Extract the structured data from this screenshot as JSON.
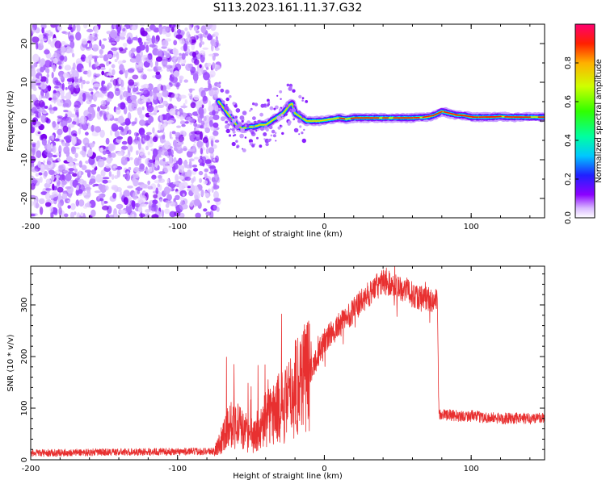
{
  "figure": {
    "title": "S113.2023.161.11.37.G32"
  },
  "chart_data": [
    {
      "type": "heatmap",
      "title": "",
      "xlabel": "Height of straight line (km)",
      "ylabel": "Frequency (Hz)",
      "xlim": [
        -200,
        150
      ],
      "ylim": [
        -25,
        25
      ],
      "x_ticks": [
        -200,
        -100,
        0,
        100
      ],
      "y_ticks": [
        -20,
        -10,
        0,
        10,
        20
      ],
      "noise_region_x": [
        -200,
        -72
      ],
      "ridge_line": {
        "x": [
          -72,
          -68,
          -64,
          -60,
          -56,
          -52,
          -48,
          -44,
          -40,
          -36,
          -32,
          -28,
          -24,
          -22,
          -20,
          -16,
          -12,
          -8,
          -4,
          0,
          5,
          10,
          15,
          20,
          25,
          30,
          40,
          50,
          60,
          70,
          75,
          80,
          85,
          90,
          95,
          100,
          105,
          110,
          115,
          120,
          125,
          130,
          135,
          140,
          145,
          150
        ],
        "y": [
          5,
          3,
          1,
          -1,
          -2,
          -1.5,
          -1.5,
          -1,
          -1,
          0,
          1,
          2,
          4,
          4.5,
          2,
          1,
          0,
          0,
          0,
          0.2,
          0.5,
          0.8,
          0.5,
          0.8,
          0.8,
          0.8,
          0.8,
          0.8,
          0.8,
          1,
          1.5,
          2.5,
          2,
          1.5,
          1.5,
          1,
          1,
          1,
          1,
          1.2,
          1,
          1,
          1,
          1,
          1,
          1
        ]
      },
      "colorbar": {
        "label": "Normalized spectral amplitude",
        "range": [
          0,
          1
        ],
        "ticks": [
          0.0,
          0.2,
          0.4,
          0.6,
          0.8
        ],
        "tick_labels": [
          "0.0",
          "0.2",
          "0.4",
          "0.6",
          "0.8"
        ]
      }
    },
    {
      "type": "line",
      "title": "",
      "xlabel": "Height of straight line (km)",
      "ylabel": "SNR (10 * v/v)",
      "xlim": [
        -200,
        150
      ],
      "ylim": [
        0,
        375
      ],
      "x_ticks": [
        -200,
        -100,
        0,
        100
      ],
      "y_ticks": [
        0,
        100,
        200,
        300
      ],
      "color": "#e83030",
      "envelope": {
        "x": [
          -200,
          -150,
          -100,
          -75,
          -70,
          -65,
          -60,
          -55,
          -50,
          -45,
          -40,
          -35,
          -30,
          -25,
          -20,
          -15,
          -10,
          -5,
          0,
          5,
          10,
          15,
          20,
          25,
          30,
          35,
          40,
          45,
          50,
          55,
          60,
          65,
          70,
          75,
          77,
          78,
          80,
          90,
          100,
          110,
          120,
          130,
          140,
          150
        ],
        "y": [
          10,
          12,
          13,
          14,
          40,
          70,
          70,
          55,
          40,
          50,
          80,
          90,
          100,
          110,
          140,
          165,
          170,
          200,
          230,
          245,
          260,
          275,
          290,
          305,
          320,
          335,
          345,
          340,
          335,
          330,
          320,
          315,
          312,
          310,
          305,
          90,
          88,
          85,
          85,
          82,
          80,
          80,
          80,
          82
        ]
      }
    }
  ]
}
